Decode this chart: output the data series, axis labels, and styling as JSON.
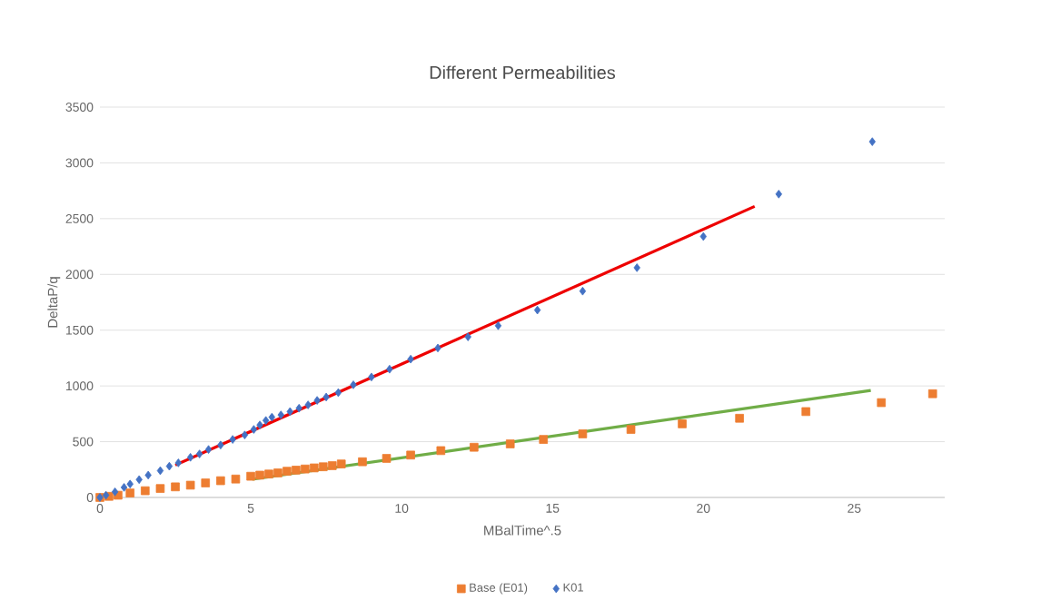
{
  "chart_data": {
    "type": "scatter",
    "title": "Different Permeabilities",
    "xlabel": "MBalTime^.5",
    "ylabel": "DeltaP/q",
    "xlim": [
      0,
      28
    ],
    "xticks": [
      0,
      5,
      10,
      15,
      20,
      25
    ],
    "ylim": [
      0,
      3500
    ],
    "yticks": [
      0,
      500,
      1000,
      1500,
      2000,
      2500,
      3000,
      3500
    ],
    "grid": "y",
    "legend": "bottom",
    "series": [
      {
        "name": "Base (E01)",
        "color": "#ed7d31",
        "marker": "square",
        "x": [
          0,
          0.3,
          0.6,
          1.0,
          1.5,
          2.0,
          2.5,
          3.0,
          3.5,
          4.0,
          4.5,
          5.0,
          5.3,
          5.6,
          5.9,
          6.2,
          6.5,
          6.8,
          7.1,
          7.4,
          7.7,
          8.0,
          8.7,
          9.5,
          10.3,
          11.3,
          12.4,
          13.6,
          14.7,
          16.0,
          17.6,
          19.3,
          21.2,
          23.4,
          25.9,
          27.6
        ],
        "values": [
          0,
          10,
          20,
          40,
          60,
          80,
          95,
          110,
          130,
          150,
          165,
          190,
          200,
          210,
          220,
          235,
          245,
          255,
          265,
          275,
          285,
          300,
          320,
          350,
          380,
          420,
          450,
          480,
          520,
          570,
          610,
          660,
          710,
          770,
          850,
          930
        ]
      },
      {
        "name": "K01",
        "color": "#4472c4",
        "marker": "diamond",
        "x": [
          0,
          0.2,
          0.5,
          0.8,
          1.0,
          1.3,
          1.6,
          2.0,
          2.3,
          2.6,
          3.0,
          3.3,
          3.6,
          4.0,
          4.4,
          4.8,
          5.1,
          5.3,
          5.5,
          5.7,
          6.0,
          6.3,
          6.6,
          6.9,
          7.2,
          7.5,
          7.9,
          8.4,
          9.0,
          9.6,
          10.3,
          11.2,
          12.2,
          13.2,
          14.5,
          16.0,
          17.8,
          20.0,
          22.5,
          25.6
        ],
        "values": [
          0,
          20,
          50,
          90,
          120,
          160,
          200,
          240,
          280,
          310,
          360,
          390,
          430,
          470,
          520,
          560,
          610,
          650,
          690,
          720,
          740,
          770,
          800,
          830,
          870,
          900,
          940,
          1010,
          1080,
          1150,
          1240,
          1340,
          1440,
          1540,
          1680,
          1850,
          2060,
          2340,
          2720,
          3190
        ]
      },
      {
        "type": "line",
        "color": "#ee0000",
        "marker": "none",
        "x": [
          2.5,
          21.7
        ],
        "values": [
          290,
          2610
        ]
      },
      {
        "type": "line",
        "color": "#70ad47",
        "marker": "none",
        "x": [
          5.05,
          25.55
        ],
        "values": [
          163,
          960
        ]
      }
    ]
  }
}
